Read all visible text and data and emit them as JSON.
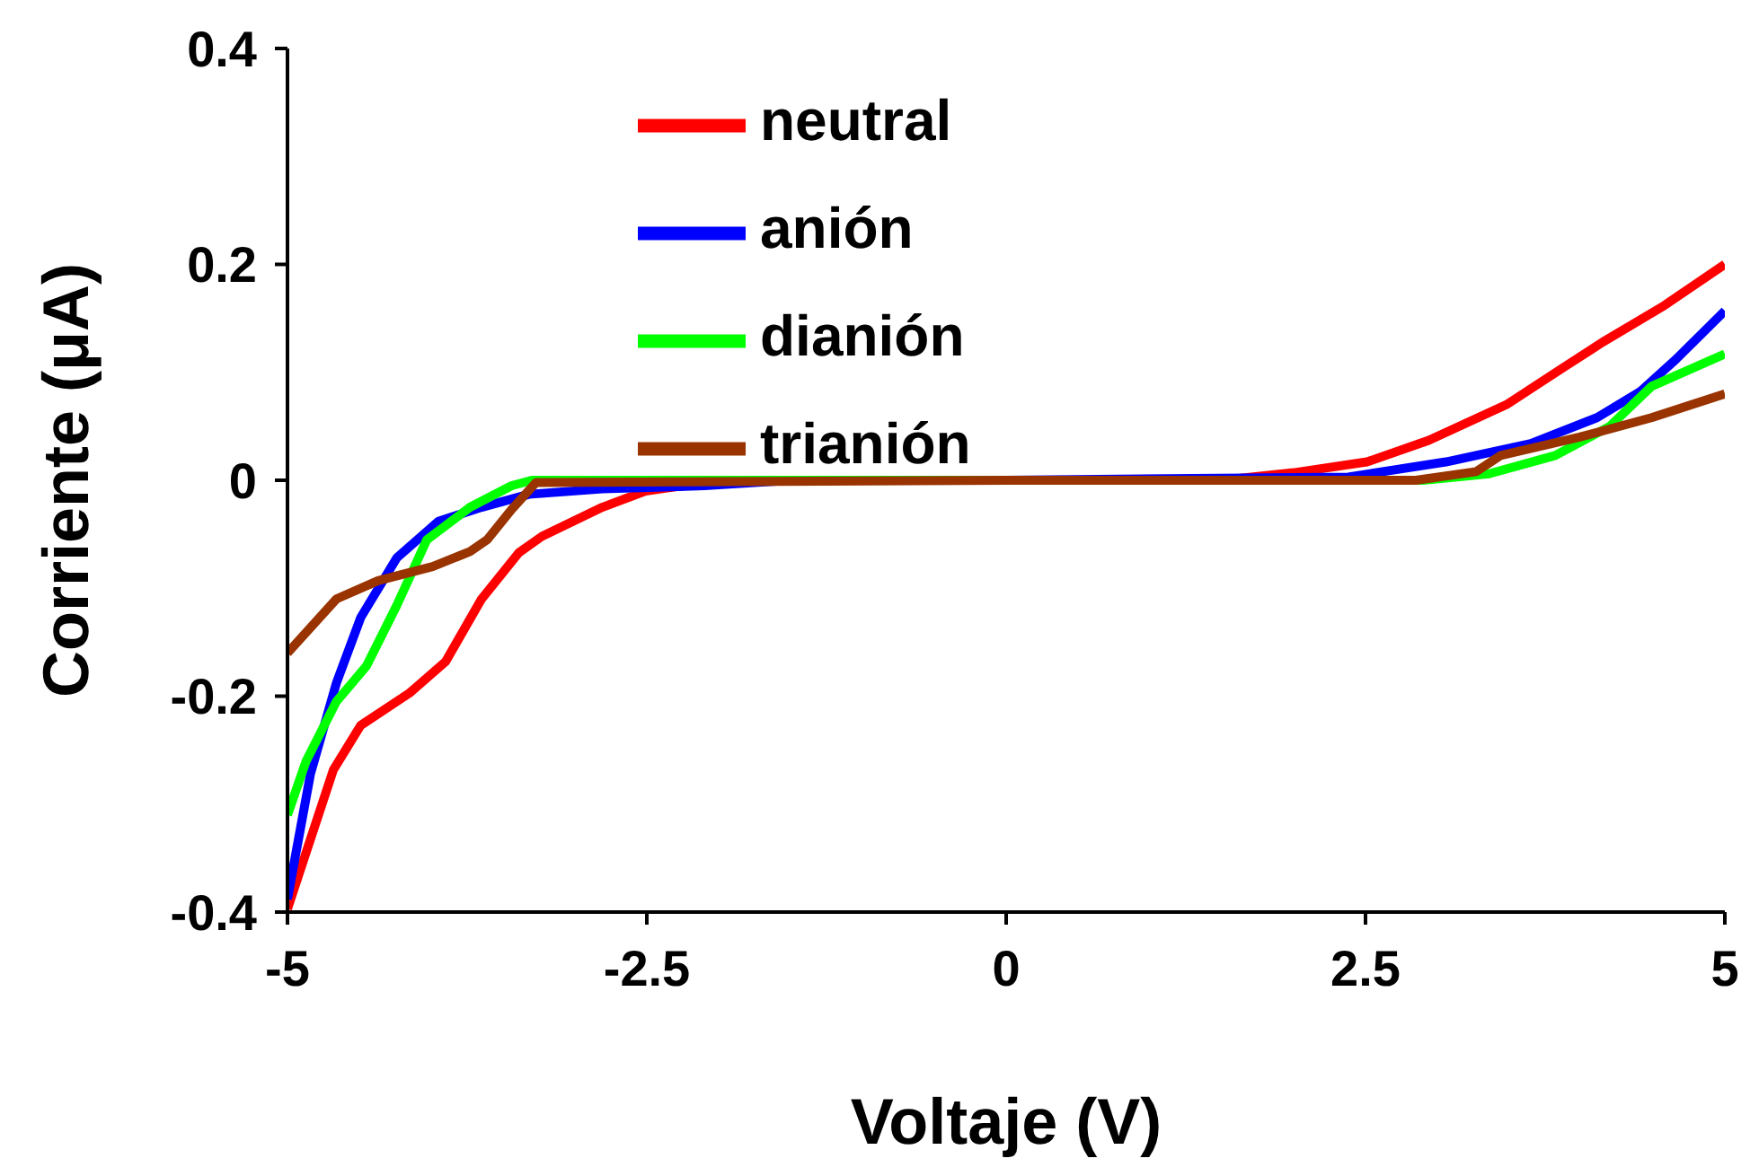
{
  "chart_data": {
    "type": "line",
    "xlabel": "Voltaje (V)",
    "ylabel": "Corriente (μA)",
    "xlim": [
      -5,
      5
    ],
    "xticks": [
      -5,
      -2.5,
      0,
      2.5,
      5
    ],
    "ylim": [
      -0.4,
      0.4
    ],
    "yticks": [
      -0.4,
      -0.2,
      0,
      0.2,
      0.4
    ],
    "grid": false,
    "legend": "top left",
    "marker": "none",
    "series": [
      {
        "name": "neutral",
        "color": "#ff0000",
        "x": [
          -5,
          -4.68,
          -4.49,
          -4.15,
          -3.9,
          -3.65,
          -3.39,
          -3.23,
          -2.81,
          -2.51,
          -2.09,
          -1.5,
          0,
          1.5,
          2.0,
          2.51,
          2.94,
          3.48,
          3.86,
          4.15,
          4.58,
          5
        ],
        "values": [
          -0.397,
          -0.268,
          -0.227,
          -0.197,
          -0.168,
          -0.11,
          -0.067,
          -0.052,
          -0.025,
          -0.01,
          -0.002,
          0,
          0,
          0,
          0.007,
          0.017,
          0.037,
          0.07,
          0.103,
          0.128,
          0.162,
          0.2
        ]
      },
      {
        "name": "anión",
        "color": "#0000ff",
        "x": [
          -5,
          -4.84,
          -4.66,
          -4.49,
          -4.24,
          -3.95,
          -3.65,
          -3.32,
          -2.81,
          -2.1,
          -1.5,
          0,
          2.38,
          3.06,
          3.65,
          4.11,
          4.41,
          4.66,
          5
        ],
        "values": [
          -0.388,
          -0.272,
          -0.188,
          -0.127,
          -0.072,
          -0.038,
          -0.025,
          -0.013,
          -0.008,
          -0.005,
          0,
          0,
          0.003,
          0.017,
          0.034,
          0.058,
          0.082,
          0.112,
          0.157
        ]
      },
      {
        "name": "dianión",
        "color": "#00ff00",
        "x": [
          -5,
          -4.87,
          -4.66,
          -4.45,
          -4.24,
          -4.03,
          -3.73,
          -3.44,
          -3.3,
          0,
          2.9,
          3.36,
          3.82,
          4.2,
          4.49,
          5
        ],
        "values": [
          -0.31,
          -0.26,
          -0.205,
          -0.172,
          -0.116,
          -0.055,
          -0.025,
          -0.005,
          0,
          0,
          0,
          0.006,
          0.023,
          0.05,
          0.087,
          0.117
        ]
      },
      {
        "name": "trianión",
        "color": "#993300",
        "x": [
          -5,
          -4.66,
          -4.37,
          -3.99,
          -3.73,
          -3.61,
          -3.44,
          -3.27,
          0,
          2.85,
          3.27,
          3.44,
          3.99,
          4.49,
          5
        ],
        "values": [
          -0.16,
          -0.11,
          -0.093,
          -0.08,
          -0.066,
          -0.055,
          -0.027,
          -0.002,
          0,
          0,
          0.008,
          0.023,
          0.04,
          0.058,
          0.08
        ]
      }
    ]
  }
}
